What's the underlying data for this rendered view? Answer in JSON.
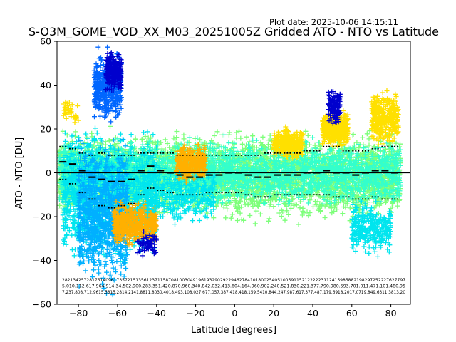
{
  "header": {
    "plot_date": "Plot date: 2025-10-06 14:15:11"
  },
  "chart_data": {
    "type": "scatter",
    "title": "S-O3M_GOME_VOD_XX_M03_20251005Z Gridded ATO - NTO vs Latitude",
    "xlabel": "Latitude [degrees]",
    "ylabel": "ATO - NTO [DU]",
    "xlim": [
      -91,
      90
    ],
    "ylim": [
      -60,
      60
    ],
    "xticks": [
      -80,
      -60,
      -40,
      -20,
      0,
      20,
      40,
      60,
      80
    ],
    "yticks": [
      -60,
      -40,
      -20,
      0,
      20,
      40,
      60
    ],
    "xtick_labels": [
      "−80",
      "−60",
      "−40",
      "−20",
      "0",
      "20",
      "40",
      "60",
      "80"
    ],
    "ytick_labels": [
      "−60",
      "−40",
      "−20",
      "0",
      "20",
      "40",
      "60"
    ],
    "zero_line": 0,
    "marker": "+",
    "colors": {
      "navy": "#0000cd",
      "blue": "#0066ff",
      "azure": "#00b0ff",
      "cyan": "#00e5ee",
      "aqua": "#33ffcc",
      "lightgreen": "#7dff7a",
      "lime": "#c8ff33",
      "yellow": "#ffe000",
      "orange": "#ffb000",
      "black": "#000000"
    },
    "clouds": [
      {
        "lat": [
          -90,
          85
        ],
        "ymin": -25,
        "ymax": 22,
        "n": 3800,
        "color": "lightgreen"
      },
      {
        "lat": [
          -90,
          85
        ],
        "ymin": -18,
        "ymax": 18,
        "n": 2600,
        "color": "aqua"
      },
      {
        "lat": [
          -88,
          -40
        ],
        "ymin": -45,
        "ymax": 25,
        "n": 1400,
        "color": "cyan"
      },
      {
        "lat": [
          -80,
          -55
        ],
        "ymin": -58,
        "ymax": 20,
        "n": 900,
        "color": "azure"
      },
      {
        "lat": [
          -72,
          -58
        ],
        "ymin": 20,
        "ymax": 58,
        "n": 450,
        "color": "blue"
      },
      {
        "lat": [
          -66,
          -58
        ],
        "ymin": 35,
        "ymax": 58,
        "n": 220,
        "color": "navy"
      },
      {
        "lat": [
          -62,
          -40
        ],
        "ymin": -35,
        "ymax": -12,
        "n": 500,
        "color": "orange"
      },
      {
        "lat": [
          -45,
          -10
        ],
        "ymin": -25,
        "ymax": 5,
        "n": 350,
        "color": "cyan"
      },
      {
        "lat": [
          -30,
          -15
        ],
        "ymin": -5,
        "ymax": 15,
        "n": 300,
        "color": "orange"
      },
      {
        "lat": [
          20,
          35
        ],
        "ymin": 5,
        "ymax": 22,
        "n": 300,
        "color": "yellow"
      },
      {
        "lat": [
          45,
          58
        ],
        "ymin": 10,
        "ymax": 30,
        "n": 400,
        "color": "yellow"
      },
      {
        "lat": [
          48,
          54
        ],
        "ymin": 20,
        "ymax": 40,
        "n": 120,
        "color": "navy"
      },
      {
        "lat": [
          70,
          84
        ],
        "ymin": 10,
        "ymax": 40,
        "n": 350,
        "color": "yellow"
      },
      {
        "lat": [
          60,
          80
        ],
        "ymin": -40,
        "ymax": -10,
        "n": 300,
        "color": "cyan"
      },
      {
        "lat": [
          -88,
          -80
        ],
        "ymin": 20,
        "ymax": 34,
        "n": 40,
        "color": "yellow"
      },
      {
        "lat": [
          -50,
          -40
        ],
        "ymin": -40,
        "ymax": -25,
        "n": 60,
        "color": "navy"
      }
    ],
    "means": {
      "lat": [
        -88,
        -83,
        -78,
        -73,
        -68,
        -63,
        -58,
        -53,
        -48,
        -43,
        -38,
        -33,
        -28,
        -23,
        -18,
        -13,
        -8,
        -3,
        2,
        7,
        12,
        17,
        22,
        27,
        32,
        37,
        42,
        47,
        52,
        57,
        62,
        67,
        72,
        77,
        82
      ],
      "mean": [
        5,
        4,
        1,
        -2,
        -3,
        -4,
        -4,
        -3,
        1,
        3,
        1,
        0,
        -1,
        -2,
        -2,
        -1,
        -1,
        0,
        0,
        -1,
        -2,
        -2,
        -1,
        -1,
        -1,
        0,
        0,
        1,
        0,
        0,
        -1,
        0,
        1,
        1,
        0
      ],
      "upper": [
        12,
        11,
        9,
        8,
        9,
        8,
        8,
        8,
        9,
        9,
        9,
        9,
        8,
        8,
        8,
        8,
        8,
        8,
        8,
        8,
        8,
        9,
        9,
        9,
        9,
        10,
        10,
        12,
        12,
        10,
        10,
        10,
        11,
        12,
        12
      ],
      "lower": [
        -3,
        -5,
        -9,
        -12,
        -15,
        -16,
        -15,
        -14,
        -10,
        -7,
        -8,
        -9,
        -10,
        -10,
        -10,
        -9,
        -9,
        -9,
        -9,
        -10,
        -11,
        -11,
        -10,
        -10,
        -10,
        -10,
        -10,
        -10,
        -11,
        -11,
        -12,
        -12,
        -11,
        -12,
        -12
      ]
    },
    "count_rows": [
      "282134257281751409617357215135612371158708100304919619329029229462784101800254051005911521222223112415985882198297252227627797",
      "5.010.112.617.964.914.34.502.900.283.351.420.870.960.340.842.032.413.604.164.960.902.240.521.830.221.377.790.980.593.701.011.471.101.480.95",
      "7.237.808.712.9615.5815.2814.2141.8811.8030.4018.493.108.027.677.057.387.418.418.159.5410.844.247.987.617.377.487.179.6918.2017.0719.849.6311.3813.20"
    ]
  }
}
